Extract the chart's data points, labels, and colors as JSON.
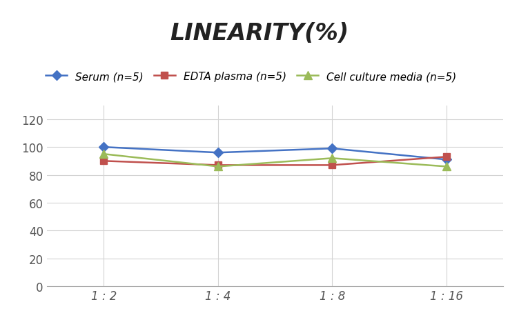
{
  "title": "LINEARITY(%)",
  "x_labels": [
    "1 : 2",
    "1 : 4",
    "1 : 8",
    "1 : 16"
  ],
  "x_positions": [
    0,
    1,
    2,
    3
  ],
  "series": [
    {
      "label": "Serum (n=5)",
      "values": [
        100,
        96,
        99,
        91
      ],
      "color": "#4472C4",
      "marker": "D",
      "marker_size": 7,
      "linewidth": 1.8
    },
    {
      "label": "EDTA plasma (n=5)",
      "values": [
        90,
        87,
        87,
        93
      ],
      "color": "#C0504D",
      "marker": "s",
      "marker_size": 7,
      "linewidth": 1.8
    },
    {
      "label": "Cell culture media (n=5)",
      "values": [
        95,
        86,
        92,
        86
      ],
      "color": "#9BBB59",
      "marker": "^",
      "marker_size": 8,
      "linewidth": 1.8
    }
  ],
  "ylim": [
    0,
    130
  ],
  "yticks": [
    0,
    20,
    40,
    60,
    80,
    100,
    120
  ],
  "background_color": "#ffffff",
  "grid_color": "#d3d3d3",
  "title_fontsize": 24,
  "legend_fontsize": 11,
  "tick_fontsize": 12
}
